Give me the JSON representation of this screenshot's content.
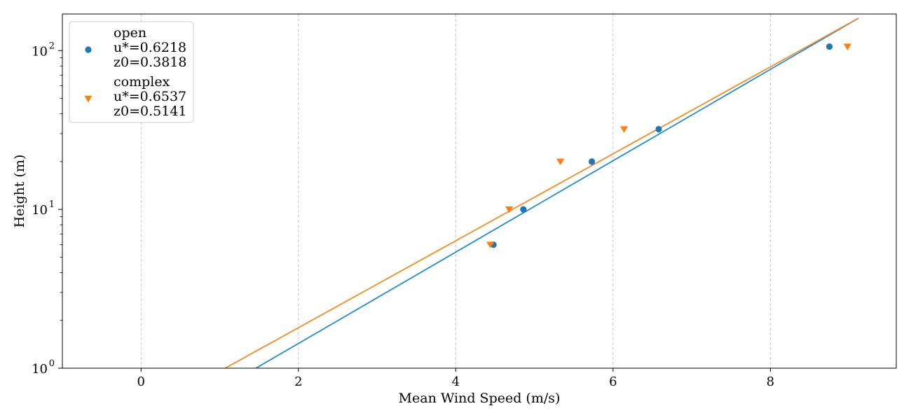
{
  "chart_data": {
    "type": "scatter",
    "title": "",
    "xlabel": "Mean Wind Speed (m/s)",
    "ylabel": "Height (m)",
    "xlim": [
      -1.0,
      9.6
    ],
    "ylim": [
      1,
      170
    ],
    "yscale": "log",
    "grid": "x-dashed",
    "legend_position": "top-left",
    "x_ticks": [
      0,
      2,
      4,
      6,
      8
    ],
    "x_tick_labels": [
      "0",
      "2",
      "4",
      "6",
      "8"
    ],
    "y_ticks": [
      1,
      10,
      100
    ],
    "y_tick_labels": [
      "10",
      "10",
      "10"
    ],
    "y_tick_exponents": [
      "0",
      "1",
      "2"
    ],
    "series": [
      {
        "name": "open",
        "legend_lines": [
          "open",
          "u*=0.6218",
          "z0=0.3818"
        ],
        "color": "#1f77b4",
        "fit_color": "#1f8bd4",
        "marker": "circle",
        "points": [
          {
            "x": 4.48,
            "y": 6
          },
          {
            "x": 4.86,
            "y": 10
          },
          {
            "x": 5.73,
            "y": 20
          },
          {
            "x": 6.58,
            "y": 32
          },
          {
            "x": 8.75,
            "y": 106
          }
        ],
        "fit_line": [
          {
            "x": 1.46,
            "y": 1
          },
          {
            "x": 9.12,
            "y": 160
          }
        ]
      },
      {
        "name": "complex",
        "legend_lines": [
          "complex",
          "u*=0.6537",
          "z0=0.5141"
        ],
        "color": "#ff7f0e",
        "fit_color": "#f58a1f",
        "marker": "triangle-down",
        "points": [
          {
            "x": 4.44,
            "y": 6
          },
          {
            "x": 4.68,
            "y": 10
          },
          {
            "x": 5.33,
            "y": 20
          },
          {
            "x": 6.14,
            "y": 32
          },
          {
            "x": 8.98,
            "y": 106
          }
        ],
        "fit_line": [
          {
            "x": 1.07,
            "y": 1
          },
          {
            "x": 9.12,
            "y": 160
          }
        ]
      }
    ]
  }
}
